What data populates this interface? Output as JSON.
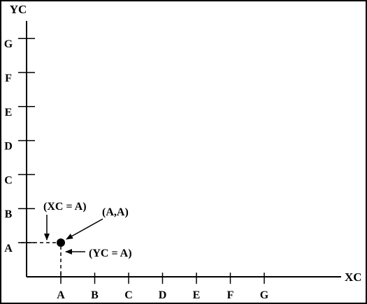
{
  "axes": {
    "x_title": "XC",
    "y_title": "YC",
    "x_ticks": [
      "A",
      "B",
      "C",
      "D",
      "E",
      "F",
      "G"
    ],
    "y_ticks": [
      "A",
      "B",
      "C",
      "D",
      "E",
      "F",
      "G"
    ]
  },
  "point": {
    "label": "(A,A)",
    "x": "A",
    "y": "A"
  },
  "annotations": {
    "x_condition": "(XC = A)",
    "y_condition": "(YC = A)"
  },
  "colors": {
    "ink": "#000000",
    "background": "#ffffff"
  }
}
